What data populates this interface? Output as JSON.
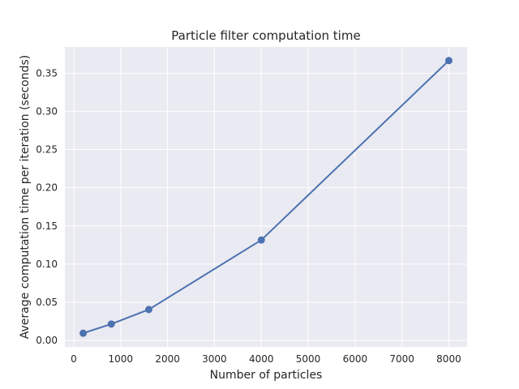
{
  "chart_data": {
    "type": "line",
    "title": "Particle filter computation time",
    "xlabel": "Number of particles",
    "ylabel": "Average computation time per iteration (seconds)",
    "x": [
      200,
      800,
      1600,
      4000,
      8000
    ],
    "series": [
      {
        "values": [
          0.0095,
          0.0215,
          0.0405,
          0.1315,
          0.3665
        ]
      }
    ],
    "xlim": [
      -190,
      8390
    ],
    "ylim": [
      -0.0084,
      0.3843
    ],
    "xticks": [
      0,
      1000,
      2000,
      3000,
      4000,
      5000,
      6000,
      7000,
      8000
    ],
    "xtick_labels": [
      "0",
      "1000",
      "2000",
      "3000",
      "4000",
      "5000",
      "6000",
      "7000",
      "8000"
    ],
    "yticks": [
      0.0,
      0.05,
      0.1,
      0.15,
      0.2,
      0.25,
      0.3,
      0.35
    ],
    "ytick_labels": [
      "0.00",
      "0.05",
      "0.10",
      "0.15",
      "0.20",
      "0.25",
      "0.30",
      "0.35"
    ],
    "grid": true,
    "colors": {
      "line": "#4c72b0",
      "background": "#eaeaf2",
      "grid": "#ffffff"
    }
  }
}
